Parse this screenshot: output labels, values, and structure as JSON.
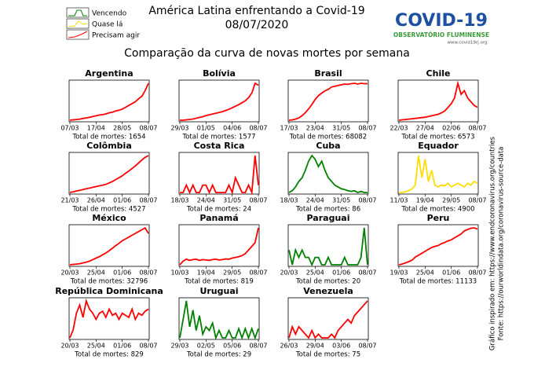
{
  "header": {
    "title": "América Latina enfrentando a Covid-19",
    "date": "08/07/2020",
    "subtitle": "Comparação da curva de novas mortes por semana",
    "legend": [
      "Vencendo",
      "Quase lá",
      "Precisam agir"
    ],
    "logo": {
      "name": "COVID-19",
      "org": "OBSERVATÓRIO FLUMINENSE",
      "url": "www.covid19rj.org"
    },
    "notes": [
      "Gráfico inspirado em: https://www.endcoronavirus.org/countries",
      "Fonte: https://ourworldindata.org/coronavirus-source-data"
    ]
  },
  "chart_data": [
    {
      "type": "line",
      "title": "Argentina",
      "color": "#ff0000",
      "total": "Total de mortes: 1654",
      "categories": [
        "07/03",
        null,
        null,
        null,
        null,
        null,
        null,
        null,
        "17/04",
        null,
        null,
        null,
        null,
        null,
        null,
        null,
        "28/05",
        null,
        null,
        null,
        null,
        null,
        null,
        null,
        "08/07"
      ],
      "values": [
        0,
        1,
        2,
        3,
        5,
        6,
        8,
        10,
        12,
        14,
        15,
        17,
        20,
        22,
        25,
        27,
        30,
        35,
        40,
        45,
        50,
        58,
        65,
        80,
        100
      ]
    },
    {
      "type": "line",
      "title": "Bolívia",
      "color": "#ff0000",
      "total": "Total de mortes: 1577",
      "categories": [
        "29/03",
        null,
        null,
        null,
        null,
        null,
        null,
        null,
        "01/05",
        null,
        null,
        null,
        null,
        null,
        null,
        null,
        "04/06",
        null,
        null,
        null,
        null,
        null,
        null,
        null,
        "08/07"
      ],
      "values": [
        0,
        0,
        1,
        2,
        3,
        5,
        7,
        9,
        12,
        14,
        16,
        18,
        20,
        22,
        25,
        28,
        32,
        36,
        40,
        45,
        50,
        58,
        70,
        95,
        90
      ]
    },
    {
      "type": "line",
      "title": "Brasil",
      "color": "#ff0000",
      "total": "Total de mortes: 68082",
      "categories": [
        "17/03",
        null,
        null,
        null,
        null,
        null,
        null,
        null,
        "23/04",
        null,
        null,
        null,
        null,
        null,
        null,
        null,
        "31/05",
        null,
        null,
        null,
        null,
        null,
        null,
        null,
        "08/07"
      ],
      "values": [
        0,
        1,
        3,
        6,
        12,
        20,
        30,
        42,
        55,
        65,
        72,
        78,
        82,
        88,
        90,
        92,
        94,
        96,
        95,
        97,
        98,
        96,
        98,
        97,
        97
      ]
    },
    {
      "type": "line",
      "title": "Chile",
      "color": "#ff0000",
      "total": "Total de mortes: 6573",
      "categories": [
        "22/03",
        null,
        null,
        null,
        null,
        null,
        null,
        null,
        "27/04",
        null,
        null,
        null,
        null,
        null,
        null,
        null,
        "02/06",
        null,
        null,
        null,
        null,
        null,
        null,
        null,
        "08/07"
      ],
      "values": [
        0,
        1,
        2,
        3,
        4,
        5,
        6,
        7,
        8,
        10,
        12,
        14,
        16,
        20,
        25,
        35,
        45,
        60,
        100,
        70,
        80,
        60,
        50,
        40,
        35
      ]
    },
    {
      "type": "line",
      "title": "Colômbia",
      "color": "#ff0000",
      "total": "Total de mortes: 4527",
      "categories": [
        "21/03",
        null,
        null,
        null,
        null,
        null,
        null,
        null,
        "26/04",
        null,
        null,
        null,
        null,
        null,
        null,
        null,
        "01/06",
        null,
        null,
        null,
        null,
        null,
        null,
        null,
        "08/07"
      ],
      "values": [
        0,
        2,
        4,
        6,
        8,
        10,
        12,
        14,
        16,
        18,
        20,
        22,
        26,
        30,
        35,
        40,
        45,
        52,
        58,
        65,
        72,
        80,
        88,
        95,
        100
      ]
    },
    {
      "type": "line",
      "title": "Costa Rica",
      "color": "#ff0000",
      "total": "Total de mortes: 24",
      "categories": [
        "18/03",
        null,
        null,
        null,
        null,
        null,
        null,
        null,
        "24/04",
        null,
        null,
        null,
        null,
        null,
        null,
        null,
        "31/05",
        null,
        null,
        null,
        null,
        null,
        null,
        null,
        "08/07"
      ],
      "values": [
        0,
        0,
        20,
        0,
        20,
        0,
        0,
        20,
        20,
        0,
        20,
        0,
        0,
        0,
        0,
        20,
        0,
        40,
        20,
        0,
        0,
        20,
        0,
        100,
        20
      ]
    },
    {
      "type": "line",
      "title": "Cuba",
      "color": "#008000",
      "total": "Total de mortes: 86",
      "categories": [
        "18/03",
        null,
        null,
        null,
        null,
        null,
        null,
        null,
        "24/04",
        null,
        null,
        null,
        null,
        null,
        null,
        null,
        "31/05",
        null,
        null,
        null,
        null,
        null,
        null,
        null,
        "08/07"
      ],
      "values": [
        0,
        5,
        15,
        30,
        40,
        60,
        85,
        100,
        90,
        70,
        85,
        60,
        40,
        30,
        20,
        15,
        10,
        8,
        5,
        3,
        5,
        0,
        3,
        0,
        0
      ]
    },
    {
      "type": "line",
      "title": "Equador",
      "color": "#ffdd00",
      "total": "Total de mortes: 4900",
      "categories": [
        "11/03",
        null,
        null,
        null,
        null,
        null,
        null,
        null,
        "19/04",
        null,
        null,
        null,
        null,
        null,
        null,
        null,
        "29/05",
        null,
        null,
        null,
        null,
        null,
        null,
        null,
        "08/07"
      ],
      "values": [
        0,
        0,
        2,
        5,
        10,
        20,
        100,
        40,
        90,
        30,
        60,
        20,
        15,
        20,
        18,
        25,
        15,
        20,
        25,
        20,
        15,
        25,
        20,
        30,
        25
      ]
    },
    {
      "type": "line",
      "title": "México",
      "color": "#ff0000",
      "total": "Total de mortes: 32796",
      "categories": [
        "20/03",
        null,
        null,
        null,
        null,
        null,
        null,
        null,
        "25/04",
        null,
        null,
        null,
        null,
        null,
        null,
        null,
        "01/06",
        null,
        null,
        null,
        null,
        null,
        null,
        null,
        "08/07"
      ],
      "values": [
        0,
        1,
        2,
        3,
        5,
        7,
        10,
        14,
        18,
        22,
        27,
        32,
        38,
        45,
        52,
        58,
        65,
        70,
        75,
        80,
        85,
        90,
        95,
        100,
        85
      ]
    },
    {
      "type": "line",
      "title": "Panamá",
      "color": "#ff0000",
      "total": "Total de mortes: 819",
      "categories": [
        "10/03",
        null,
        null,
        null,
        null,
        null,
        null,
        null,
        "19/04",
        null,
        null,
        null,
        null,
        null,
        null,
        null,
        "29/05",
        null,
        null,
        null,
        null,
        null,
        null,
        null,
        "08/07"
      ],
      "values": [
        0,
        10,
        15,
        12,
        14,
        15,
        12,
        14,
        13,
        12,
        14,
        15,
        13,
        14,
        16,
        15,
        18,
        20,
        22,
        25,
        30,
        40,
        50,
        60,
        100
      ]
    },
    {
      "type": "line",
      "title": "Paraguai",
      "color": "#008000",
      "total": "Total de mortes: 20",
      "categories": [
        "20/03",
        null,
        null,
        null,
        null,
        null,
        null,
        null,
        "25/04",
        null,
        null,
        null,
        null,
        null,
        null,
        null,
        "01/06",
        null,
        null,
        null,
        null,
        null,
        null,
        null,
        "08/07"
      ],
      "values": [
        40,
        0,
        40,
        20,
        40,
        20,
        20,
        0,
        20,
        20,
        0,
        0,
        20,
        0,
        0,
        0,
        0,
        20,
        0,
        0,
        0,
        0,
        20,
        100,
        0
      ]
    },
    {
      "type": "line",
      "title": "Peru",
      "color": "#ff0000",
      "total": "Total de mortes: 11133",
      "categories": [
        "19/03",
        null,
        null,
        null,
        null,
        null,
        null,
        null,
        "25/04",
        null,
        null,
        null,
        null,
        null,
        null,
        null,
        "01/06",
        null,
        null,
        null,
        null,
        null,
        null,
        null,
        "08/07"
      ],
      "values": [
        0,
        2,
        5,
        8,
        12,
        20,
        25,
        30,
        35,
        40,
        45,
        48,
        50,
        55,
        58,
        62,
        65,
        70,
        75,
        80,
        88,
        92,
        95,
        96,
        93
      ]
    },
    {
      "type": "line",
      "title": "República Dominicana",
      "color": "#ff0000",
      "total": "Total de mortes: 829",
      "categories": [
        "20/03",
        null,
        null,
        null,
        null,
        null,
        null,
        null,
        "25/04",
        null,
        null,
        null,
        null,
        null,
        null,
        null,
        "01/06",
        null,
        null,
        null,
        null,
        null,
        null,
        null,
        "08/07"
      ],
      "values": [
        0,
        20,
        60,
        80,
        50,
        90,
        70,
        60,
        45,
        60,
        65,
        50,
        70,
        55,
        60,
        45,
        60,
        55,
        50,
        70,
        45,
        60,
        55,
        65,
        70
      ]
    },
    {
      "type": "line",
      "title": "Uruguai",
      "color": "#008000",
      "total": "Total de mortes: 29",
      "categories": [
        "29/03",
        null,
        null,
        null,
        null,
        null,
        null,
        null,
        "02/05",
        null,
        null,
        null,
        null,
        null,
        null,
        null,
        "05/06",
        null,
        null,
        null,
        null,
        null,
        null,
        null,
        "08/07"
      ],
      "values": [
        0,
        50,
        100,
        30,
        75,
        20,
        60,
        10,
        30,
        20,
        40,
        0,
        20,
        0,
        0,
        20,
        0,
        0,
        25,
        0,
        25,
        0,
        25,
        0,
        25
      ]
    },
    {
      "type": "line",
      "title": "Venezuela",
      "color": "#ff0000",
      "total": "Total de mortes: 75",
      "categories": [
        "26/03",
        null,
        null,
        null,
        null,
        null,
        null,
        null,
        "29/04",
        null,
        null,
        null,
        null,
        null,
        null,
        null,
        "03/06",
        null,
        null,
        null,
        null,
        null,
        null,
        null,
        "08/07"
      ],
      "values": [
        0,
        30,
        10,
        30,
        20,
        10,
        0,
        20,
        0,
        10,
        0,
        0,
        0,
        10,
        0,
        20,
        30,
        40,
        50,
        40,
        60,
        70,
        80,
        90,
        100
      ]
    }
  ]
}
